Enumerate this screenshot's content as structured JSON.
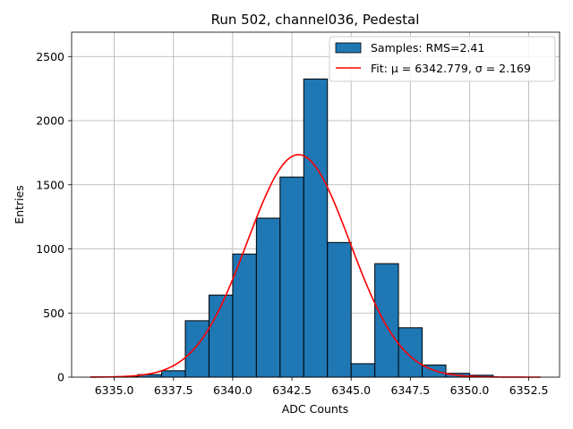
{
  "chart_data": {
    "type": "histogram",
    "title": "Run 502, channel036, Pedestal",
    "xlabel": "ADC Counts",
    "ylabel": "Entries",
    "xlim": [
      6333.2,
      6353.8
    ],
    "ylim": [
      0,
      2690
    ],
    "grid": true,
    "x_ticks": [
      {
        "value": 6335.0,
        "label": "6335.0"
      },
      {
        "value": 6337.5,
        "label": "6337.5"
      },
      {
        "value": 6340.0,
        "label": "6340.0"
      },
      {
        "value": 6342.5,
        "label": "6342.5"
      },
      {
        "value": 6345.0,
        "label": "6345.0"
      },
      {
        "value": 6347.5,
        "label": "6347.5"
      },
      {
        "value": 6350.0,
        "label": "6350.0"
      },
      {
        "value": 6352.5,
        "label": "6352.5"
      }
    ],
    "y_ticks": [
      {
        "value": 0,
        "label": "0"
      },
      {
        "value": 500,
        "label": "500"
      },
      {
        "value": 1000,
        "label": "1000"
      },
      {
        "value": 1500,
        "label": "1500"
      },
      {
        "value": 2000,
        "label": "2000"
      },
      {
        "value": 2500,
        "label": "2500"
      }
    ],
    "bins": {
      "edges": [
        6334,
        6335,
        6336,
        6337,
        6338,
        6339,
        6340,
        6341,
        6342,
        6343,
        6344,
        6345,
        6346,
        6347,
        6348,
        6349,
        6350,
        6351,
        6352,
        6353
      ],
      "counts": [
        2,
        4,
        20,
        50,
        440,
        640,
        960,
        1240,
        1560,
        2325,
        1050,
        105,
        885,
        385,
        95,
        30,
        15,
        0,
        0
      ],
      "color": "#1f77b4",
      "edge_color": "#000000"
    },
    "fit": {
      "mu": 6342.779,
      "sigma": 2.169,
      "amplitude": 1735,
      "x_range": [
        6334,
        6353
      ],
      "color": "#ff0000"
    },
    "legend": {
      "location": "upper right",
      "entries": [
        {
          "kind": "patch",
          "label": "Samples: RMS=2.41",
          "color": "#1f77b4"
        },
        {
          "kind": "line",
          "label": "Fit: μ = 6342.779, σ = 2.169",
          "color": "#ff0000"
        }
      ]
    }
  }
}
